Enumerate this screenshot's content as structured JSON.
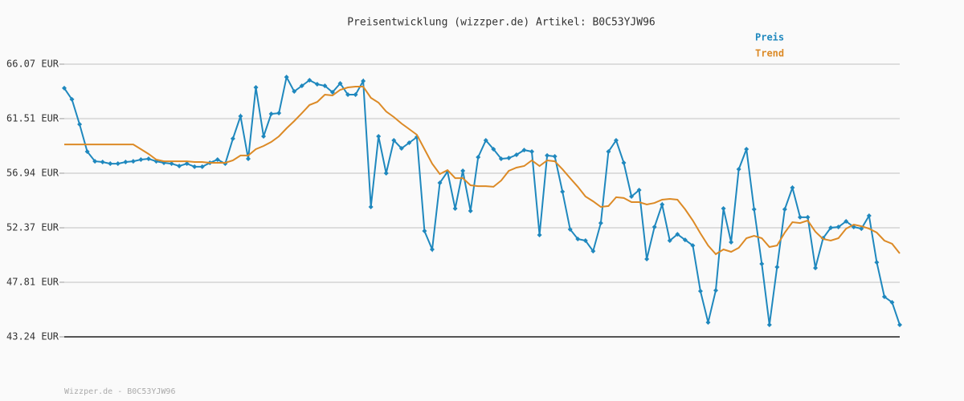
{
  "chart_data": {
    "type": "line",
    "title": "Preisentwicklung (wizzper.de) Artikel: B0C53YJW96",
    "footer": "Wizzper.de - B0C53YJW96",
    "ylim": [
      43.24,
      66.07
    ],
    "yticks": [
      {
        "value": 43.24,
        "label": "43.24 EUR"
      },
      {
        "value": 47.81,
        "label": "47.81 EUR"
      },
      {
        "value": 52.37,
        "label": "52.37 EUR"
      },
      {
        "value": 56.94,
        "label": "56.94 EUR"
      },
      {
        "value": 61.51,
        "label": "61.51 EUR"
      },
      {
        "value": 66.07,
        "label": "66.07 EUR"
      }
    ],
    "grid": true,
    "legend": "top-right",
    "series": [
      {
        "name": "Preis",
        "color": "#1f88be",
        "markers": true,
        "values": [
          64.06,
          63.12,
          61.03,
          58.75,
          57.94,
          57.88,
          57.74,
          57.74,
          57.88,
          57.94,
          58.08,
          58.15,
          57.94,
          57.81,
          57.74,
          57.54,
          57.74,
          57.48,
          57.48,
          57.81,
          58.08,
          57.74,
          59.83,
          61.71,
          58.15,
          64.12,
          60.03,
          61.91,
          61.97,
          64.99,
          63.79,
          64.26,
          64.73,
          64.39,
          64.26,
          63.72,
          64.46,
          63.52,
          63.52,
          64.66,
          54.12,
          60.03,
          56.94,
          59.69,
          59.02,
          59.49,
          59.96,
          52.1,
          50.56,
          56.13,
          57.07,
          53.98,
          57.14,
          53.78,
          58.28,
          59.69,
          58.95,
          58.15,
          58.21,
          58.48,
          58.88,
          58.75,
          51.77,
          58.42,
          58.35,
          55.39,
          52.24,
          51.43,
          51.3,
          50.42,
          52.77,
          58.75,
          59.69,
          57.81,
          54.99,
          55.53,
          49.75,
          52.44,
          54.32,
          51.3,
          51.83,
          51.36,
          50.89,
          47.07,
          44.45,
          47.13,
          53.98,
          51.16,
          57.27,
          58.95,
          53.92,
          49.35,
          44.25,
          49.08,
          53.92,
          55.73,
          53.25,
          53.25,
          49.01,
          51.5,
          52.37,
          52.44,
          52.91,
          52.44,
          52.3,
          53.38,
          49.48,
          46.6,
          46.13,
          44.25
        ]
      },
      {
        "name": "Trend",
        "color": "#dc8a26",
        "markers": false,
        "values": [
          59.35,
          59.35,
          59.35,
          59.35,
          59.35,
          59.35,
          59.35,
          59.35,
          59.35,
          59.35,
          58.95,
          58.55,
          58.08,
          57.94,
          57.94,
          57.94,
          57.94,
          57.88,
          57.88,
          57.81,
          57.81,
          57.81,
          58.01,
          58.42,
          58.42,
          58.95,
          59.22,
          59.56,
          60.03,
          60.7,
          61.3,
          61.97,
          62.65,
          62.91,
          63.52,
          63.45,
          63.92,
          64.12,
          64.19,
          64.19,
          63.25,
          62.85,
          62.11,
          61.64,
          61.1,
          60.63,
          60.16,
          58.95,
          57.74,
          56.87,
          57.2,
          56.53,
          56.53,
          55.93,
          55.86,
          55.86,
          55.8,
          56.33,
          57.14,
          57.41,
          57.54,
          58.01,
          57.54,
          58.01,
          57.94,
          57.27,
          56.53,
          55.8,
          54.99,
          54.59,
          54.12,
          54.19,
          54.93,
          54.86,
          54.52,
          54.52,
          54.32,
          54.45,
          54.72,
          54.79,
          54.72,
          53.92,
          52.98,
          51.9,
          50.89,
          50.16,
          50.56,
          50.36,
          50.69,
          51.5,
          51.7,
          51.5,
          50.76,
          50.89,
          51.97,
          52.84,
          52.77,
          52.98,
          52.04,
          51.43,
          51.3,
          51.5,
          52.3,
          52.64,
          52.5,
          52.3,
          51.97,
          51.3,
          51.03,
          50.22
        ]
      }
    ]
  }
}
